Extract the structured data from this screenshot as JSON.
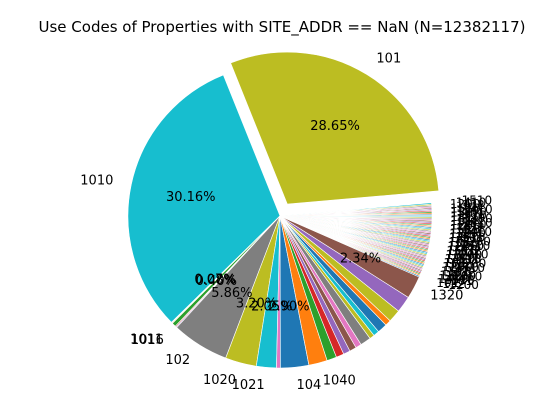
{
  "chart_data": {
    "type": "pie",
    "title": "Use Codes of Properties with SITE_ADDR == NaN (N=12382117)",
    "slices": [
      {
        "label": "101",
        "value": 28.65,
        "pct_label": "28.65%",
        "color": "#bcbd22",
        "explode": true
      },
      {
        "label": "1010",
        "value": 30.16,
        "pct_label": "30.16%",
        "color": "#17becf",
        "explode": false
      },
      {
        "label": "",
        "value": 0.07,
        "pct_label": "0.07%",
        "color": "#1f77b4",
        "explode": false
      },
      {
        "label": "",
        "value": 0.08,
        "pct_label": "0.08%",
        "color": "#ff7f0e",
        "explode": false
      },
      {
        "label": "",
        "value": 0.4,
        "pct_label": "0.40%",
        "color": "#2ca02c",
        "explode": false
      },
      {
        "label": "1011",
        "value": 0.1,
        "pct_label": "",
        "color": "#d62728",
        "explode": false
      },
      {
        "label": "1016",
        "value": 0.1,
        "pct_label": "",
        "color": "#9467bd",
        "explode": false
      },
      {
        "label": "102",
        "value": 5.86,
        "pct_label": "5.86%",
        "color": "#7f7f7f",
        "explode": false
      },
      {
        "label": "1020",
        "value": 3.2,
        "pct_label": "3.20%",
        "color": "#bcbd22",
        "explode": false
      },
      {
        "label": "1021",
        "value": 2.05,
        "pct_label": "2.05%",
        "color": "#17becf",
        "explode": false
      },
      {
        "label": "",
        "value": 0.4,
        "pct_label": "",
        "color": "#e377c2",
        "explode": false
      },
      {
        "label": "104",
        "value": 2.9,
        "pct_label": "2.90%",
        "color": "#1f77b4",
        "explode": false
      },
      {
        "label": "1040",
        "value": 1.9,
        "pct_label": "",
        "color": "#ff7f0e",
        "explode": false
      },
      {
        "label": "",
        "value": 1.0,
        "pct_label": "",
        "color": "#2ca02c",
        "explode": false
      },
      {
        "label": "",
        "value": 0.8,
        "pct_label": "",
        "color": "#d62728",
        "explode": false
      },
      {
        "label": "",
        "value": 0.7,
        "pct_label": "",
        "color": "#9467bd",
        "explode": false
      },
      {
        "label": "",
        "value": 0.7,
        "pct_label": "",
        "color": "#8c564b",
        "explode": false
      },
      {
        "label": "",
        "value": 0.6,
        "pct_label": "",
        "color": "#e377c2",
        "explode": false
      },
      {
        "label": "",
        "value": 1.1,
        "pct_label": "",
        "color": "#7f7f7f",
        "explode": false
      },
      {
        "label": "",
        "value": 0.5,
        "pct_label": "",
        "color": "#bcbd22",
        "explode": false
      },
      {
        "label": "",
        "value": 0.6,
        "pct_label": "",
        "color": "#17becf",
        "explode": false
      },
      {
        "label": "",
        "value": 1.0,
        "pct_label": "",
        "color": "#1f77b4",
        "explode": false
      },
      {
        "label": "",
        "value": 0.6,
        "pct_label": "",
        "color": "#ff7f0e",
        "explode": false
      },
      {
        "label": "",
        "value": 1.3,
        "pct_label": "",
        "color": "#bcbd22",
        "explode": false
      },
      {
        "label": "",
        "value": 1.7,
        "pct_label": "",
        "color": "#9467bd",
        "explode": false
      },
      {
        "label": "1320",
        "value": 2.34,
        "pct_label": "2.34%",
        "color": "#8c564b",
        "explode": false
      },
      {
        "label": "",
        "value": 7.68,
        "pct_label": "",
        "color": "#7f7f7f",
        "explode": false,
        "many_small": true
      }
    ],
    "visible_clutter_labels": [
      "101",
      "132",
      "1200",
      "1410",
      "1510"
    ],
    "legend": "none"
  }
}
